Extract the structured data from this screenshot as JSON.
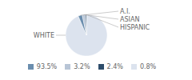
{
  "chart_data": {
    "type": "pie",
    "categories": [
      "WHITE",
      "A.I.",
      "ASIAN",
      "HISPANIC"
    ],
    "values": [
      93.5,
      3.2,
      2.4,
      0.8
    ],
    "value_labels": [
      "93.5%",
      "3.2%",
      "2.4%",
      "0.8%"
    ],
    "colors": [
      "#dce3ee",
      "#6b8eae",
      "#b8c5d6",
      "#2e4d6b"
    ],
    "legend": "bottom"
  }
}
